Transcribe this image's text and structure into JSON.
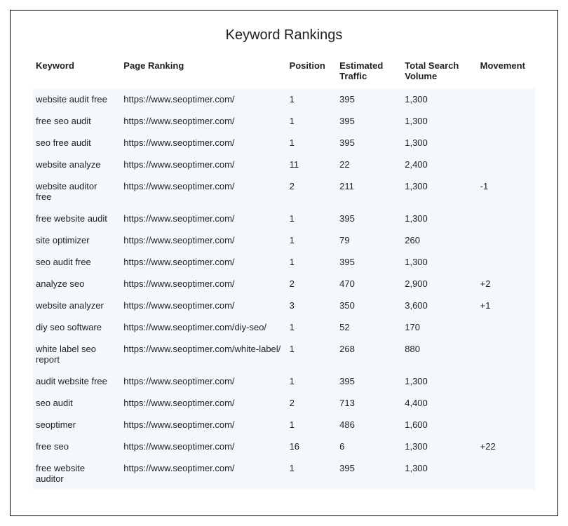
{
  "title": "Keyword Rankings",
  "colors": {
    "background": "#ffffff",
    "border": "#000000",
    "text": "#202124",
    "row_stripe": "#f5f8fb"
  },
  "table": {
    "columns": [
      "Keyword",
      "Page Ranking",
      "Position",
      "Estimated Traffic",
      "Total Search Volume",
      "Movement"
    ],
    "rows": [
      {
        "keyword": "website audit free",
        "url": "https://www.seoptimer.com/",
        "position": "1",
        "traffic": "395",
        "volume": "1,300",
        "movement": ""
      },
      {
        "keyword": "free seo audit",
        "url": "https://www.seoptimer.com/",
        "position": "1",
        "traffic": "395",
        "volume": "1,300",
        "movement": ""
      },
      {
        "keyword": "seo free audit",
        "url": "https://www.seoptimer.com/",
        "position": "1",
        "traffic": "395",
        "volume": "1,300",
        "movement": ""
      },
      {
        "keyword": "website analyze",
        "url": "https://www.seoptimer.com/",
        "position": "11",
        "traffic": "22",
        "volume": "2,400",
        "movement": ""
      },
      {
        "keyword": "website auditor free",
        "url": "https://www.seoptimer.com/",
        "position": "2",
        "traffic": "211",
        "volume": "1,300",
        "movement": "-1"
      },
      {
        "keyword": "free website audit",
        "url": "https://www.seoptimer.com/",
        "position": "1",
        "traffic": "395",
        "volume": "1,300",
        "movement": ""
      },
      {
        "keyword": "site optimizer",
        "url": "https://www.seoptimer.com/",
        "position": "1",
        "traffic": "79",
        "volume": "260",
        "movement": ""
      },
      {
        "keyword": "seo audit free",
        "url": "https://www.seoptimer.com/",
        "position": "1",
        "traffic": "395",
        "volume": "1,300",
        "movement": ""
      },
      {
        "keyword": "analyze seo",
        "url": "https://www.seoptimer.com/",
        "position": "2",
        "traffic": "470",
        "volume": "2,900",
        "movement": "+2"
      },
      {
        "keyword": "website analyzer",
        "url": "https://www.seoptimer.com/",
        "position": "3",
        "traffic": "350",
        "volume": "3,600",
        "movement": "+1"
      },
      {
        "keyword": "diy seo software",
        "url": "https://www.seoptimer.com/diy-seo/",
        "position": "1",
        "traffic": "52",
        "volume": "170",
        "movement": ""
      },
      {
        "keyword": "white label seo report",
        "url": "https://www.seoptimer.com/white-label/",
        "position": "1",
        "traffic": "268",
        "volume": "880",
        "movement": ""
      },
      {
        "keyword": "audit website free",
        "url": "https://www.seoptimer.com/",
        "position": "1",
        "traffic": "395",
        "volume": "1,300",
        "movement": ""
      },
      {
        "keyword": "seo audit",
        "url": "https://www.seoptimer.com/",
        "position": "2",
        "traffic": "713",
        "volume": "4,400",
        "movement": ""
      },
      {
        "keyword": "seoptimer",
        "url": "https://www.seoptimer.com/",
        "position": "1",
        "traffic": "486",
        "volume": "1,600",
        "movement": ""
      },
      {
        "keyword": "free seo",
        "url": "https://www.seoptimer.com/",
        "position": "16",
        "traffic": "6",
        "volume": "1,300",
        "movement": "+22"
      },
      {
        "keyword": "free website auditor",
        "url": "https://www.seoptimer.com/",
        "position": "1",
        "traffic": "395",
        "volume": "1,300",
        "movement": ""
      }
    ]
  }
}
